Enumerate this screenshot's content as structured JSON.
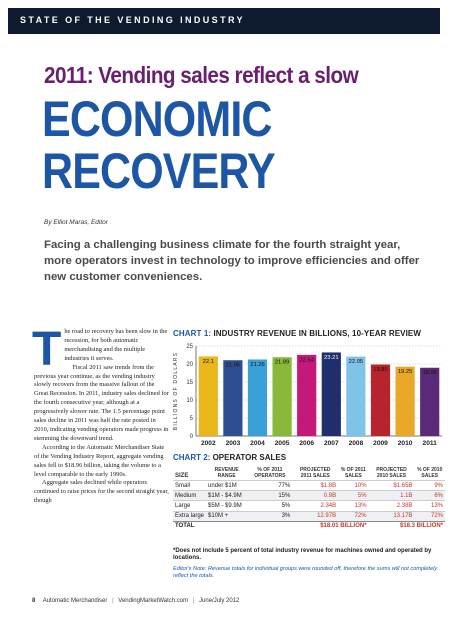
{
  "section": "STATE OF THE VENDING INDUSTRY",
  "kicker": "2011: Vending sales reflect a slow",
  "headline1": "ECONOMIC",
  "headline2": "RECOVERY",
  "byline": "By Elliot Maras, Editor",
  "deck": "Facing a challenging business climate for the fourth straight year, more operators invest in technology to improve efficiencies and offer new customer conveniences.",
  "body": {
    "dropcap": "T",
    "paragraphs": [
      "he road to recovery has been slow in the recession, for both automatic merchandising and the multiple industries it serves.",
      "Fiscal 2011 saw trends from the previous year continue, as the vending industry slowly recovers from the massive fallout of the Great Recession. In 2011, industry sales declined for the fourth consecutive year, although at a progressively slower rate. The 1.5 percentage point sales decline in 2011 was half the rate posted in 2010, indicating vending operators made progress in stemming the downward trend.",
      "According to the Automatic Merchandiser State of the Vending Industry Report, aggregate vending sales fell to $18.96 billion, taking the volume to a level comparable to the early 1990s.",
      "Aggregate sales declined while operators continued to raise prices for the second straight year, though"
    ]
  },
  "chart1": {
    "label_num": "CHART 1:",
    "label_text": "INDUSTRY REVENUE IN BILLIONS, 10-YEAR REVIEW"
  },
  "chart_data": {
    "type": "bar",
    "title": "INDUSTRY REVENUE IN BILLIONS, 10-YEAR REVIEW",
    "ylabel": "BILLIONS OF DOLLARS",
    "xlabel": "",
    "categories": [
      "2002",
      "2003",
      "2004",
      "2005",
      "2006",
      "2007",
      "2008",
      "2009",
      "2010",
      "2011"
    ],
    "values": [
      22.1,
      21.05,
      21.26,
      21.89,
      22.54,
      23.21,
      22.05,
      19.85,
      19.25,
      18.96
    ],
    "value_labels": [
      "22.1",
      "21.05",
      "21.26",
      "21.89",
      "22.54",
      "23.21",
      "22.05",
      "19.85",
      "19.25",
      "18.96"
    ],
    "ylim": [
      0,
      25
    ],
    "yticks": [
      0,
      5,
      10,
      15,
      20,
      25
    ],
    "grid": true,
    "colors": [
      "#e9b71a",
      "#2f4e92",
      "#3aa0d8",
      "#8ab83a",
      "#c4187a",
      "#1f2f6e",
      "#7fc4e6",
      "#b8242c",
      "#e9a82a",
      "#5a2a78"
    ]
  },
  "chart2": {
    "label_num": "CHART 2:",
    "label_text": "OPERATOR SALES",
    "headers": [
      "SIZE",
      "REVENUE RANGE",
      "% OF 2011 OPERATORS",
      "PROJECTED 2011 SALES",
      "% OF 2011 SALES",
      "PROJECTED 2010 SALES",
      "% OF 2010 SALES"
    ],
    "rows": [
      [
        "Small",
        "under $1M",
        "77%",
        "$1.8B",
        "10%",
        "$1.65B",
        "9%"
      ],
      [
        "Medium",
        "$1M - $4.9M",
        "15%",
        "0.9B",
        "5%",
        "1.1B",
        "6%"
      ],
      [
        "Large",
        "$5M - $9.9M",
        "5%",
        "2.34B",
        "13%",
        "2.38B",
        "13%"
      ],
      [
        "Extra large",
        "$10M +",
        "3%",
        "12.97B",
        "72%",
        "13.17B",
        "72%"
      ]
    ],
    "total": [
      "TOTAL",
      "",
      "",
      "$18.01 BILLION*",
      "",
      "$18.3 BILLION*",
      ""
    ]
  },
  "footnote": "*Does not include 5 percent of total industry revenue for machines owned and operated by locations.",
  "editor_note": "Editor's Note: Revenue totals for individual groups were rounded off, therefore the sums will not completely reflect the totals.",
  "footer": {
    "page": "8",
    "pub": "Automatic Merchandiser",
    "site": "VendingMarketWatch.com",
    "date": "June/July 2012"
  }
}
